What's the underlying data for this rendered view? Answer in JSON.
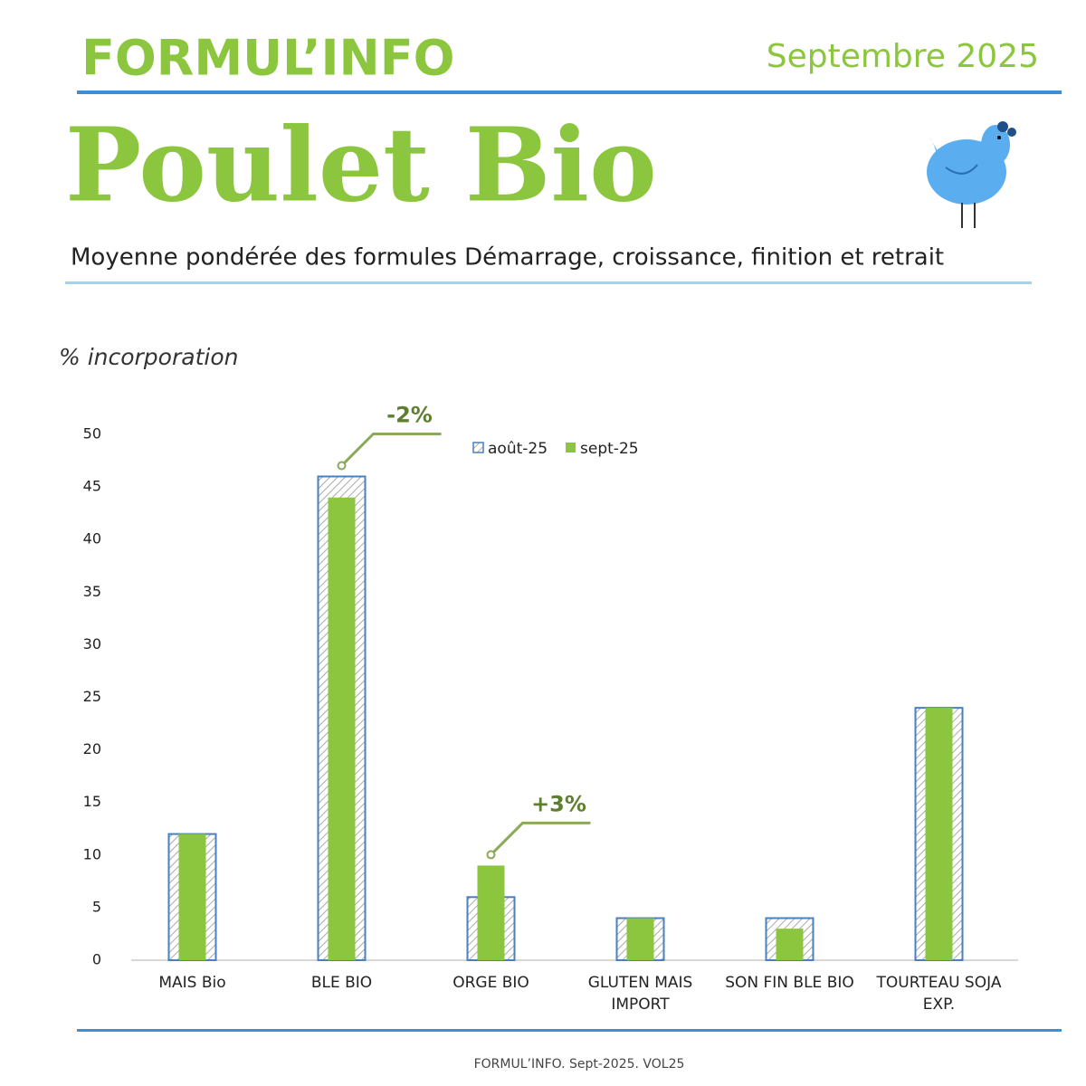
{
  "header": {
    "brand": "FORMUL’INFO",
    "date": "Septembre 2025"
  },
  "title": "Poulet Bio",
  "subtitle": "Moyenne pondérée des formules Démarrage, croissance, finition et retrait",
  "footer": "FORMUL’INFO. Sept-2025. VOL25",
  "chart_data": {
    "type": "bar",
    "y_label": "% incorporation",
    "categories": [
      "MAIS Bio",
      "BLE BIO",
      "ORGE BIO",
      "GLUTEN MAIS IMPORT",
      "SON FIN BLE BIO",
      "TOURTEAU SOJA EXP."
    ],
    "series": [
      {
        "name": "août-25",
        "color": "#4a7fc0",
        "values": [
          12,
          46,
          6,
          4,
          4,
          24
        ]
      },
      {
        "name": "sept-25",
        "color": "#8cc63f",
        "values": [
          12,
          44,
          9,
          4,
          3,
          24
        ]
      }
    ],
    "annotations": [
      {
        "text": "-2%",
        "category": "BLE BIO"
      },
      {
        "text": "+3%",
        "category": "ORGE BIO"
      }
    ],
    "ylim": [
      0,
      50
    ],
    "yticks": [
      0,
      5,
      10,
      15,
      20,
      25,
      30,
      35,
      40,
      45,
      50
    ],
    "grid": false,
    "legend": "top"
  }
}
